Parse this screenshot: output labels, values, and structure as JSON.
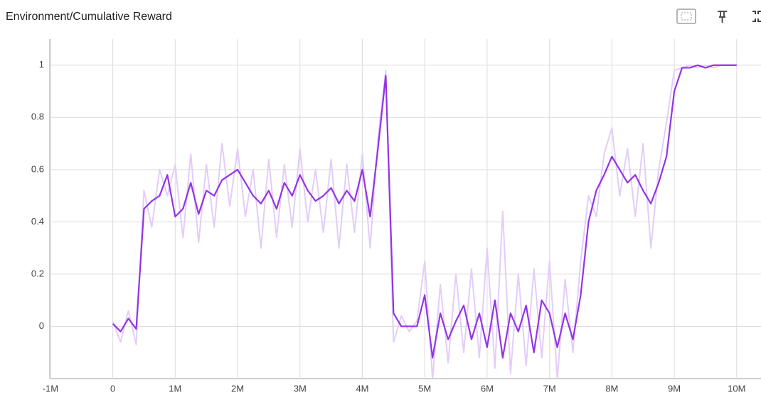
{
  "chart_data": {
    "type": "line",
    "title": "Environment/Cumulative Reward",
    "x": [
      0,
      125000,
      250000,
      375000,
      500000,
      625000,
      750000,
      875000,
      1000000,
      1125000,
      1250000,
      1375000,
      1500000,
      1625000,
      1750000,
      1875000,
      2000000,
      2125000,
      2250000,
      2375000,
      2500000,
      2625000,
      2750000,
      2875000,
      3000000,
      3125000,
      3250000,
      3375000,
      3500000,
      3625000,
      3750000,
      3875000,
      4000000,
      4125000,
      4250000,
      4375000,
      4500000,
      4625000,
      4750000,
      4875000,
      5000000,
      5125000,
      5250000,
      5375000,
      5500000,
      5625000,
      5750000,
      5875000,
      6000000,
      6125000,
      6250000,
      6375000,
      6500000,
      6625000,
      6750000,
      6875000,
      7000000,
      7125000,
      7250000,
      7375000,
      7500000,
      7625000,
      7750000,
      7875000,
      8000000,
      8125000,
      8250000,
      8375000,
      8500000,
      8625000,
      8750000,
      8875000,
      9000000,
      9125000,
      9250000,
      9375000,
      9500000,
      9625000,
      9750000,
      9875000,
      10000000
    ],
    "series": [
      {
        "color": "#e3cdf8",
        "values": [
          0.02,
          -0.06,
          0.06,
          -0.07,
          0.52,
          0.38,
          0.6,
          0.5,
          0.62,
          0.34,
          0.66,
          0.32,
          0.62,
          0.38,
          0.7,
          0.46,
          0.68,
          0.42,
          0.6,
          0.3,
          0.64,
          0.34,
          0.62,
          0.38,
          0.68,
          0.4,
          0.6,
          0.36,
          0.64,
          0.3,
          0.62,
          0.36,
          0.66,
          0.3,
          0.72,
          0.98,
          -0.06,
          0.04,
          -0.02,
          0.02,
          0.25,
          -0.2,
          0.16,
          -0.14,
          0.2,
          -0.1,
          0.22,
          -0.12,
          0.3,
          -0.16,
          0.44,
          -0.18,
          0.2,
          -0.15,
          0.22,
          -0.12,
          0.25,
          -0.2,
          0.18,
          -0.1,
          0.25,
          0.5,
          0.42,
          0.66,
          0.76,
          0.5,
          0.68,
          0.42,
          0.7,
          0.3,
          0.6,
          0.78,
          0.98,
          0.99,
          1.0,
          0.99,
          1.0,
          0.99,
          1.0,
          1.0,
          1.0
        ]
      },
      {
        "color": "#9334e6",
        "values": [
          0.01,
          -0.02,
          0.03,
          -0.01,
          0.45,
          0.48,
          0.5,
          0.58,
          0.42,
          0.45,
          0.55,
          0.43,
          0.52,
          0.5,
          0.56,
          0.58,
          0.6,
          0.55,
          0.5,
          0.47,
          0.52,
          0.45,
          0.55,
          0.5,
          0.58,
          0.52,
          0.48,
          0.5,
          0.53,
          0.47,
          0.52,
          0.48,
          0.6,
          0.42,
          0.68,
          0.96,
          0.05,
          0,
          0,
          0,
          0.12,
          -0.12,
          0.05,
          -0.05,
          0.02,
          0.08,
          -0.05,
          0.05,
          -0.08,
          0.1,
          -0.12,
          0.05,
          -0.02,
          0.08,
          -0.1,
          0.1,
          0.05,
          -0.08,
          0.05,
          -0.05,
          0.12,
          0.4,
          0.52,
          0.58,
          0.65,
          0.6,
          0.55,
          0.58,
          0.52,
          0.47,
          0.55,
          0.65,
          0.9,
          0.99,
          0.99,
          1.0,
          0.99,
          1.0,
          1.0,
          1.0,
          1.0
        ]
      }
    ],
    "xlim": [
      -1010000,
      10390000
    ],
    "ylim": [
      -0.2,
      1.1
    ],
    "xticks": [
      {
        "value": -1000000,
        "label": "-1M"
      },
      0,
      {
        "value": 1000000,
        "label": "1M"
      },
      {
        "value": 2000000,
        "label": "2M"
      },
      {
        "value": 3000000,
        "label": "3M"
      },
      {
        "value": 4000000,
        "label": "4M"
      },
      {
        "value": 5000000,
        "label": "5M"
      },
      {
        "value": 6000000,
        "label": "6M"
      },
      {
        "value": 7000000,
        "label": "7M"
      },
      {
        "value": 8000000,
        "label": "8M"
      },
      {
        "value": 9000000,
        "label": "9M"
      },
      {
        "value": 10000000,
        "label": "10M"
      }
    ],
    "yticks": [
      0,
      0.2,
      0.4,
      0.6,
      0.8,
      1
    ],
    "grid": true
  }
}
